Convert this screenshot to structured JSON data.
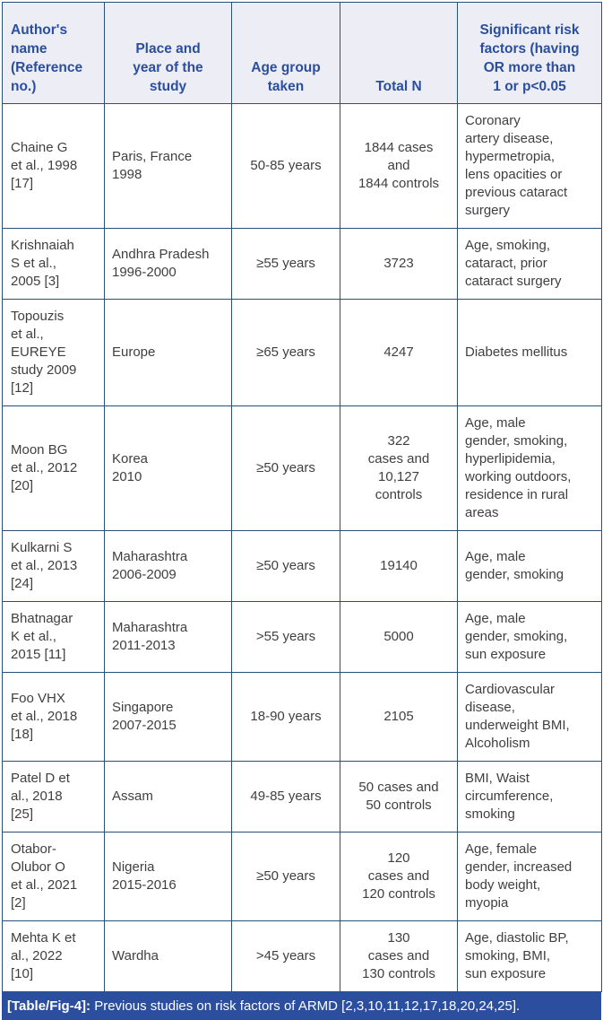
{
  "colors": {
    "border": "#2a5173",
    "header_background": "#ecedf5",
    "header_text": "#2b4f9e",
    "body_text": "#3f3f3f",
    "caption_background": "#2b4f9e",
    "caption_text": "#ffffff"
  },
  "table": {
    "columns": [
      {
        "id": "author",
        "label": "Author's\nname\n(Reference\nno.)"
      },
      {
        "id": "place-year",
        "label": "Place and\nyear of the\nstudy"
      },
      {
        "id": "age-group",
        "label": "Age group\ntaken"
      },
      {
        "id": "total-n",
        "label": "Total N"
      },
      {
        "id": "risk-factors",
        "label": "Significant risk\nfactors (having\nOR more than\n1 or p<0.05"
      }
    ],
    "rows": [
      [
        "Chaine G\net al., 1998\n[17]",
        "Paris, France\n1998",
        "50-85 years",
        "1844 cases\nand\n1844 controls",
        "Coronary\nartery disease,\nhypermetropia,\nlens opacities or\nprevious cataract\nsurgery"
      ],
      [
        "Krishnaiah\nS et al.,\n2005 [3]",
        "Andhra Pradesh\n1996-2000",
        "≥55 years",
        "3723",
        "Age, smoking,\ncataract, prior\ncataract surgery"
      ],
      [
        "Topouzis\net al.,\nEUREYE\nstudy 2009\n[12]",
        "Europe",
        "≥65 years",
        "4247",
        "Diabetes mellitus"
      ],
      [
        "Moon BG\net al., 2012\n[20]",
        "Korea\n2010",
        "≥50 years",
        "322\ncases and\n10,127\ncontrols",
        "Age, male\ngender, smoking,\nhyperlipidemia,\nworking outdoors,\nresidence in rural\nareas"
      ],
      [
        "Kulkarni S\net al., 2013\n[24]",
        "Maharashtra\n2006-2009",
        "≥50 years",
        "19140",
        "Age, male\ngender, smoking"
      ],
      [
        "Bhatnagar\nK et al.,\n2015 [11]",
        "Maharashtra\n2011-2013",
        ">55 years",
        "5000",
        "Age, male\ngender, smoking,\nsun exposure"
      ],
      [
        "Foo VHX\net al., 2018\n[18]",
        "Singapore\n2007-2015",
        "18-90 years",
        "2105",
        "Cardiovascular\ndisease,\nunderweight BMI,\nAlcoholism"
      ],
      [
        "Patel D et\nal., 2018\n[25]",
        "Assam",
        "49-85 years",
        "50 cases and\n50 controls",
        "BMI, Waist\ncircumference,\nsmoking"
      ],
      [
        "Otabor-\nOlubor O\net al., 2021\n[2]",
        "Nigeria\n2015-2016",
        "≥50 years",
        "120\ncases and\n120 controls",
        "Age, female\ngender, increased\nbody weight,\nmyopia"
      ],
      [
        "Mehta K et\nal., 2022\n[10]",
        "Wardha",
        ">45 years",
        "130\ncases and\n130 controls",
        "Age, diastolic BP,\nsmoking, BMI,\nsun exposure"
      ]
    ],
    "caption": {
      "tag": "[Table/Fig-4]:",
      "text": " Previous studies on risk factors of ARMD [2,3,10,11,12,17,18,20,24,25]."
    }
  }
}
